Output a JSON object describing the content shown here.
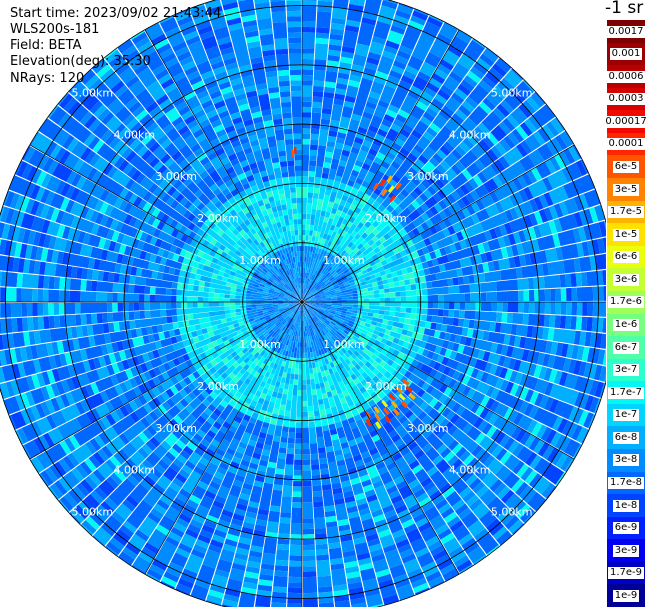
{
  "header": {
    "start_time": "Start time: 2023/09/02 21:43:44",
    "instrument": "WLS200s-181",
    "field": "Field: BETA",
    "elevation": "Elevation(deg): 35.30",
    "nrays": "NRays: 120"
  },
  "colorbar": {
    "title": "-1 sr",
    "labels": [
      "0.0017",
      "0.001",
      "0.0006",
      "0.0003",
      "0.00017",
      "0.0001",
      "6e-5",
      "3e-5",
      "1.7e-5",
      "1e-5",
      "6e-6",
      "3e-6",
      "1.7e-6",
      "1e-6",
      "6e-7",
      "3e-7",
      "1.7e-7",
      "1e-7",
      "6e-8",
      "3e-8",
      "1.7e-8",
      "1e-8",
      "6e-9",
      "3e-9",
      "1.7e-9",
      "1e-9"
    ],
    "colors": [
      "#7f0000",
      "#9c0000",
      "#b80000",
      "#d50000",
      "#f10800",
      "#ff2600",
      "#ff5500",
      "#ff8300",
      "#ffb200",
      "#ffe100",
      "#eaff0d",
      "#c4ff33",
      "#9dff5a",
      "#77ff80",
      "#50ffa7",
      "#2affcd",
      "#03f8f4",
      "#00d4ff",
      "#00b0ff",
      "#008cff",
      "#0068ff",
      "#0044ff",
      "#0020ff",
      "#0000f1",
      "#0000c4",
      "#000096"
    ]
  },
  "chart_data": {
    "type": "heatmap",
    "projection": "polar (PPI)",
    "field": "BETA",
    "n_rays": 120,
    "range_rings_km": [
      1,
      2,
      3,
      4,
      5
    ],
    "range_ring_labels": [
      "1.00km",
      "2.00km",
      "3.00km",
      "4.00km",
      "5.00km"
    ],
    "max_range_km": 5.3,
    "azimuth_lines_deg": [
      0,
      30,
      60,
      90,
      120,
      150,
      180,
      210,
      240,
      270,
      300,
      330
    ],
    "background_level": "1e-8 to 1.7e-7",
    "features": [
      {
        "azimuth_deg_range": [
          32,
          42
        ],
        "range_km": [
          2.25,
          2.6
        ],
        "level": "1e-5 to 1e-4"
      },
      {
        "azimuth_deg_range": [
          127,
          152
        ],
        "range_km": [
          2.15,
          2.5
        ],
        "level": "1e-5 to 1e-4"
      },
      {
        "azimuth_deg_range": [
          356,
          358
        ],
        "range_km": [
          2.45,
          2.6
        ],
        "level": "1e-5 to 1e-4"
      }
    ]
  }
}
